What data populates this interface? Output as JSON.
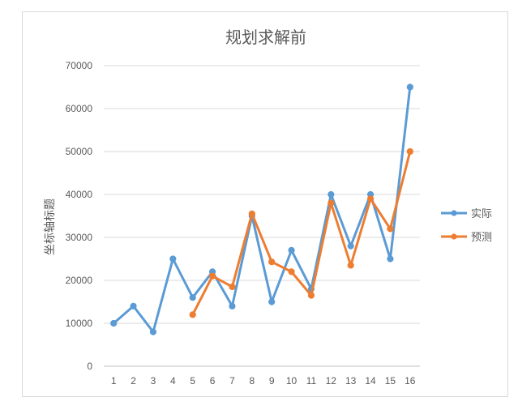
{
  "chart_data": {
    "type": "line",
    "title": "规划求解前",
    "xlabel": "",
    "ylabel": "坐标轴标题",
    "categories": [
      "1",
      "2",
      "3",
      "4",
      "5",
      "6",
      "7",
      "8",
      "9",
      "10",
      "11",
      "12",
      "13",
      "14",
      "15",
      "16"
    ],
    "ylim": [
      0,
      70000
    ],
    "yticks": [
      0,
      10000,
      20000,
      30000,
      40000,
      50000,
      60000,
      70000
    ],
    "grid": true,
    "legend_position": "right",
    "series": [
      {
        "name": "实际",
        "color": "#5b9bd5",
        "values": [
          10000,
          14000,
          8000,
          25000,
          16000,
          22000,
          14000,
          35000,
          15000,
          27000,
          18000,
          40000,
          28000,
          40000,
          25000,
          65000
        ]
      },
      {
        "name": "预测",
        "color": "#ed7d31",
        "values": [
          null,
          null,
          null,
          null,
          12000,
          21000,
          18500,
          35500,
          24300,
          22000,
          16500,
          38000,
          23500,
          39000,
          32000,
          50000
        ]
      }
    ]
  }
}
